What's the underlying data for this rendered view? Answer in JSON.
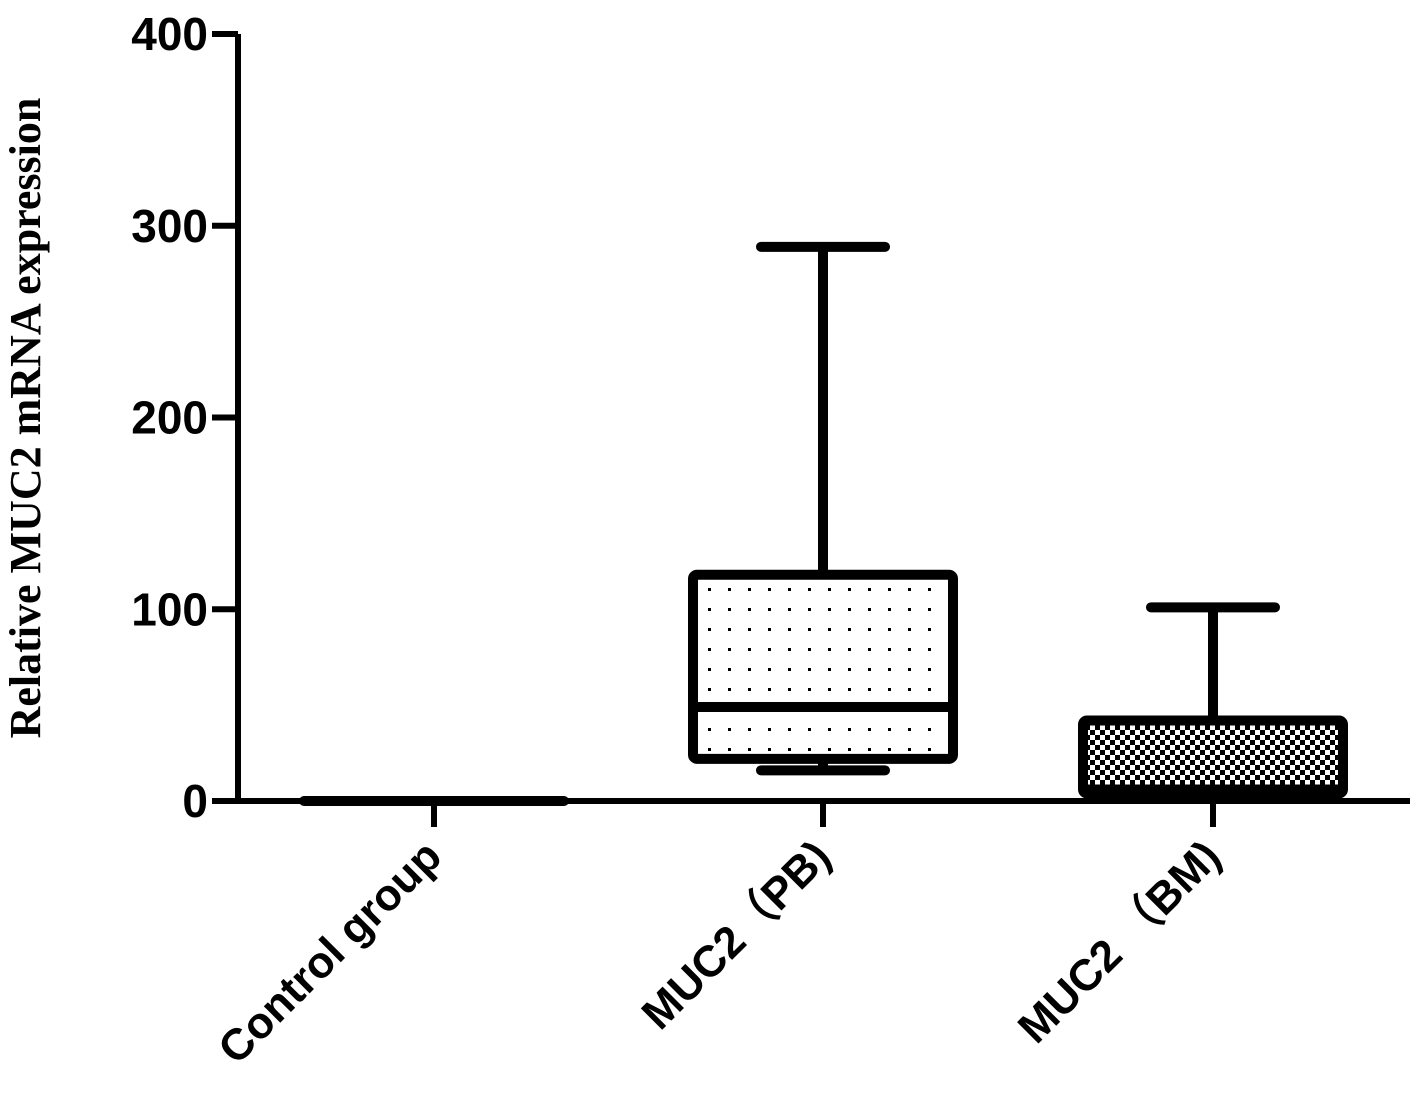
{
  "chart_data": {
    "type": "box",
    "title": "",
    "xlabel": "",
    "ylabel": "Relative MUC2 mRNA expression",
    "ylim": [
      0,
      400
    ],
    "yticks": [
      0,
      100,
      200,
      300,
      400
    ],
    "grid": false,
    "legend": "none",
    "categories": [
      "Control group",
      "MUC2（PB)",
      "MUC2 （BM)"
    ],
    "boxes": [
      {
        "category": "Control group",
        "min": 0,
        "q1": 0,
        "median": 0,
        "q3": 0,
        "max": 0,
        "pattern": "none"
      },
      {
        "category": "MUC2（PB)",
        "min": 16,
        "q1": 22,
        "median": 49,
        "q3": 118,
        "max": 289,
        "pattern": "sparse-dots"
      },
      {
        "category": "MUC2 （BM)",
        "min": 4,
        "q1": 4,
        "median": 6,
        "q3": 42,
        "max": 101,
        "pattern": "dense-checker"
      }
    ],
    "colors": {
      "stroke": "#000000",
      "background": "#ffffff"
    }
  }
}
